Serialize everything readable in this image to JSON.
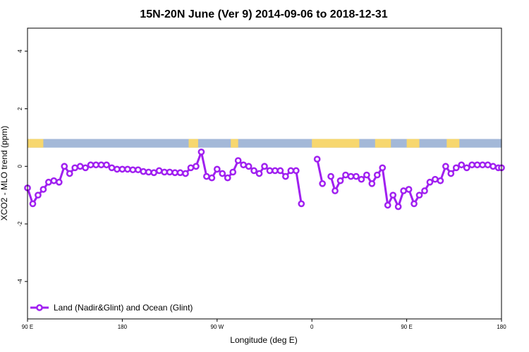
{
  "chart_data": {
    "type": "line",
    "title": "15N-20N June (Ver 9)   2014-09-06 to 2018-12-31",
    "xlabel": "Longitude (deg E)",
    "ylabel": "XCO2 - MLO trend (ppm)",
    "xlim": [
      90,
      450
    ],
    "ylim": [
      -5.3,
      4.8
    ],
    "x_ticks": [
      {
        "value": 90,
        "label": "90 E"
      },
      {
        "value": 180,
        "label": "180"
      },
      {
        "value": 270,
        "label": "90 W"
      },
      {
        "value": 360,
        "label": "0"
      },
      {
        "value": 450,
        "label": "90 E"
      },
      {
        "value": 540,
        "label": "180"
      }
    ],
    "y_ticks": [
      {
        "value": 4,
        "label": "4"
      },
      {
        "value": 2,
        "label": "2"
      },
      {
        "value": 0,
        "label": "0"
      },
      {
        "value": -2,
        "label": "-2"
      },
      {
        "value": -4,
        "label": "-4"
      }
    ],
    "band": {
      "y_range": [
        0.65,
        0.95
      ],
      "ocean_color": "#a3b8d8",
      "land_color": "#f7d76e"
    },
    "series": [
      {
        "name": "Land (Nadir&Glint) and Ocean (Glint)",
        "color": "#a020f0",
        "segments": [
          {
            "x": [
              90,
              95,
              100,
              105,
              110,
              115,
              120,
              125,
              130,
              135,
              140,
              145,
              150,
              155,
              160,
              165,
              170,
              175,
              180,
              185,
              190,
              195,
              200,
              205,
              210,
              215,
              220,
              225,
              230,
              235,
              240,
              245,
              250,
              255,
              260,
              265,
              270,
              275,
              280,
              285,
              290,
              295,
              300,
              305,
              310,
              315,
              320,
              325,
              330,
              335,
              340,
              345,
              350,
              355
            ],
            "y": [
              -0.75,
              -1.3,
              -1.0,
              -0.8,
              -0.55,
              -0.5,
              -0.55,
              0.0,
              -0.25,
              -0.05,
              0.0,
              -0.05,
              0.05,
              0.05,
              0.05,
              0.05,
              -0.05,
              -0.1,
              -0.1,
              -0.1,
              -0.12,
              -0.12,
              -0.18,
              -0.2,
              -0.22,
              -0.15,
              -0.2,
              -0.2,
              -0.22,
              -0.22,
              -0.25,
              -0.05,
              0.0,
              0.5,
              -0.35,
              -0.4,
              -0.1,
              -0.25,
              -0.4,
              -0.2,
              0.2,
              0.05,
              0.0,
              -0.15,
              -0.25,
              0.0,
              -0.15,
              -0.15,
              -0.15,
              -0.35,
              -0.15,
              -0.15,
              -1.3,
              null
            ]
          },
          {
            "x": [
              365,
              370
            ],
            "y": [
              0.25,
              -0.6
            ]
          },
          {
            "x": [
              378,
              382,
              387,
              392,
              397,
              402,
              407,
              412,
              417,
              422,
              427,
              432,
              437,
              442,
              447,
              452,
              457,
              462,
              467,
              472,
              477,
              482,
              487,
              492,
              497,
              502,
              507,
              512,
              517,
              522,
              527,
              532,
              537,
              540
            ],
            "y": [
              -0.35,
              -0.85,
              -0.5,
              -0.3,
              -0.35,
              -0.35,
              -0.45,
              -0.3,
              -0.6,
              -0.3,
              -0.05,
              -1.35,
              -1.0,
              -1.4,
              -0.85,
              -0.8,
              -1.3,
              -1.0,
              -0.85,
              -0.55,
              -0.45,
              -0.5,
              0.0,
              -0.25,
              -0.05,
              0.05,
              -0.05,
              0.05,
              0.05,
              0.05,
              0.05,
              0.0,
              -0.05,
              -0.05
            ]
          }
        ]
      }
    ],
    "legend_position": "bottom-left"
  }
}
